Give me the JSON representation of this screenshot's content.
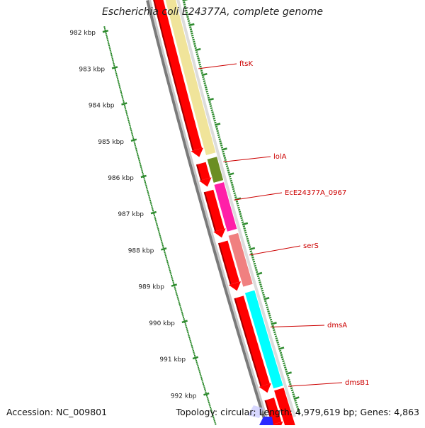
{
  "title": "Escherichia coli E24377A, complete genome",
  "footer": {
    "accession": "Accession: NC_009801",
    "topology": "Topology: circular; Length: 4,979,619 bp; Genes: 4,863"
  },
  "ruler": {
    "unit": "kbp",
    "ticks": [
      "982 kbp",
      "983 kbp",
      "984 kbp",
      "985 kbp",
      "986 kbp",
      "987 kbp",
      "988 kbp",
      "989 kbp",
      "990 kbp",
      "991 kbp",
      "992 kbp"
    ]
  },
  "genes": [
    {
      "name": "ftsK",
      "color": "#f0e49a"
    },
    {
      "name": "lolA",
      "color": "#6b8e23"
    },
    {
      "name": "EcE24377A_0967",
      "color": "#ff1fa8"
    },
    {
      "name": "serS",
      "color": "#f08080"
    },
    {
      "name": "dmsA",
      "color": "#00ffff"
    },
    {
      "name": "dmsB1",
      "color": "#ff0000"
    }
  ],
  "colors": {
    "label": "#cc0000",
    "ruler": "#2e8b2e",
    "backbone": "#7a7a7a",
    "cds": "#ff0000"
  }
}
